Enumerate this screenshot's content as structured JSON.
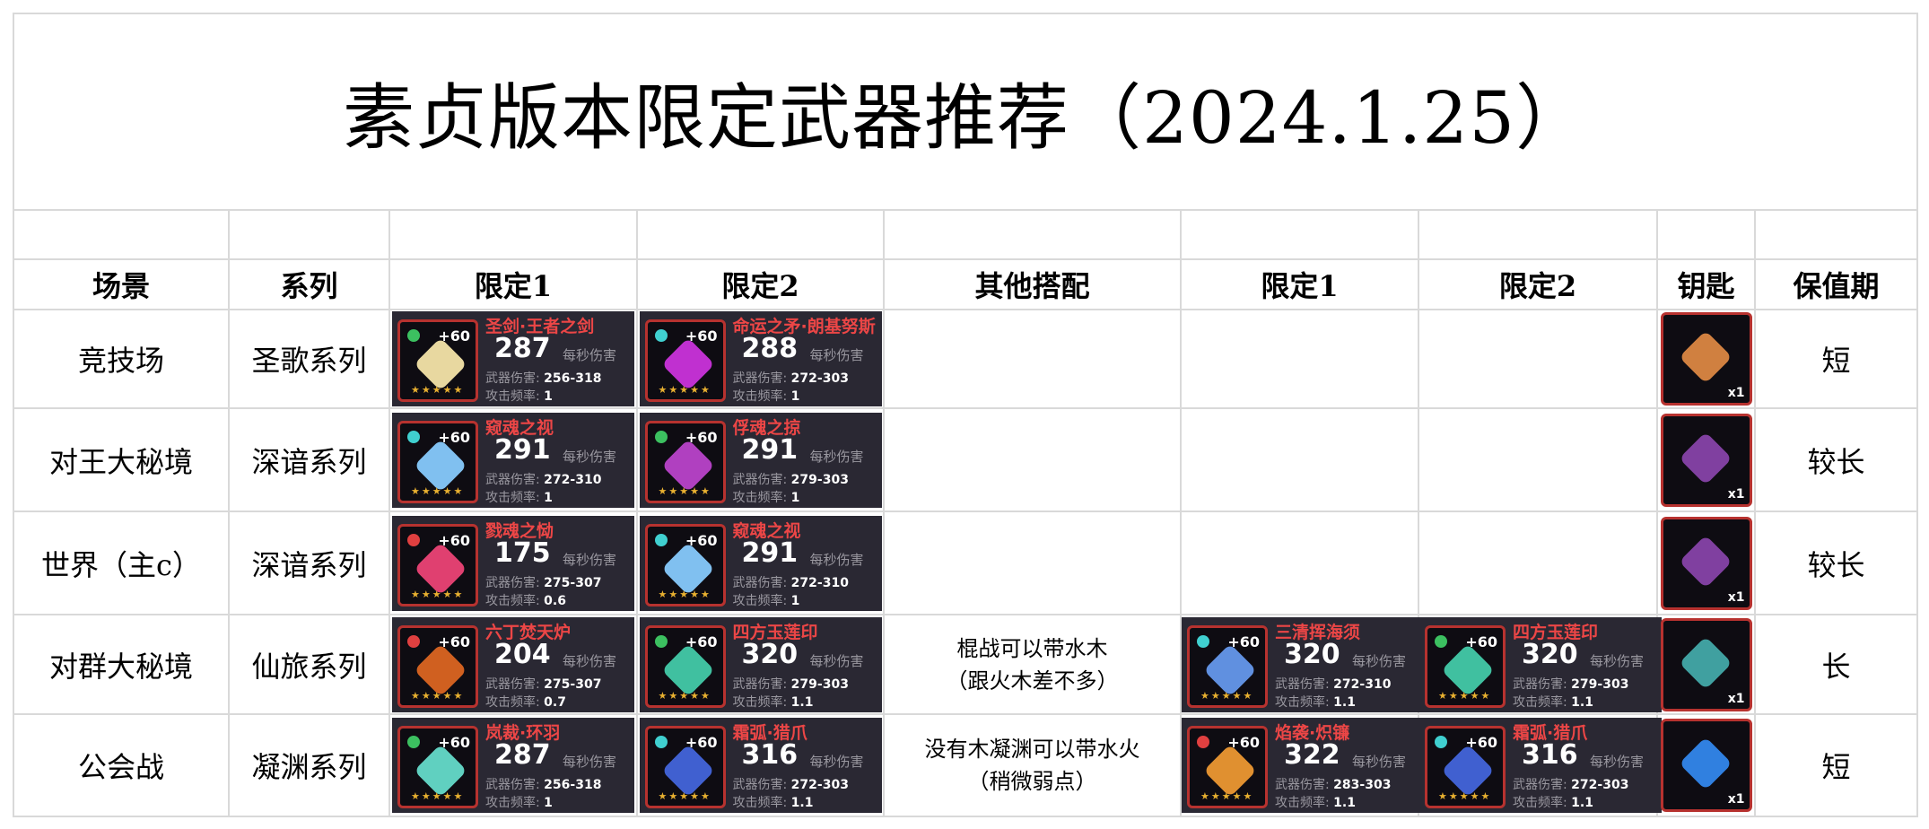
{
  "title": "素贞版本限定武器推荐（2024.1.25）",
  "headers": [
    "场景",
    "系列",
    "限定1",
    "限定2",
    "其他搭配",
    "限定1",
    "限定2",
    "钥匙",
    "保值期"
  ],
  "dps_label": "每秒伤害",
  "dmg_label": "武器伤害:",
  "rate_label": "攻击频率:",
  "plus": "+60",
  "stars": "★★★★★",
  "key_count": "x1",
  "colors": {
    "card_bg": "#2a2833",
    "name_red": "#ec4646",
    "frame_red": "#b7322f",
    "fire": "#e04040",
    "wood": "#3cc060",
    "water": "#40d0d0"
  },
  "rows": [
    {
      "scene": "竞技场",
      "series": "圣歌系列",
      "w1": {
        "name": "圣剑·王者之剑",
        "dps": "287",
        "dmg": "256-318",
        "rate": "1",
        "element": "wood",
        "art": "#e8d8a0"
      },
      "w2": {
        "name": "命运之矛·朗基努斯",
        "dps": "288",
        "dmg": "272-303",
        "rate": "1",
        "element": "water",
        "art": "#c030d0"
      },
      "note": "",
      "w3": null,
      "w4": null,
      "key_art": "#d08040",
      "period": "短"
    },
    {
      "scene": "对王大秘境",
      "series": "深谙系列",
      "w1": {
        "name": "窥魂之视",
        "dps": "291",
        "dmg": "272-310",
        "rate": "1",
        "element": "water",
        "art": "#80c0f0"
      },
      "w2": {
        "name": "俘魂之掠",
        "dps": "291",
        "dmg": "279-303",
        "rate": "1",
        "element": "wood",
        "art": "#b040c0"
      },
      "note": "",
      "w3": null,
      "w4": null,
      "key_art": "#8040a0",
      "period": "较长"
    },
    {
      "scene": "世界（主c）",
      "series": "深谙系列",
      "w1": {
        "name": "戮魂之恸",
        "dps": "175",
        "dmg": "275-307",
        "rate": "0.6",
        "element": "fire",
        "art": "#e04070"
      },
      "w2": {
        "name": "窥魂之视",
        "dps": "291",
        "dmg": "272-310",
        "rate": "1",
        "element": "water",
        "art": "#80c0f0"
      },
      "note": "",
      "w3": null,
      "w4": null,
      "key_art": "#8040a0",
      "period": "较长"
    },
    {
      "scene": "对群大秘境",
      "series": "仙旅系列",
      "w1": {
        "name": "六丁焚天炉",
        "dps": "204",
        "dmg": "275-307",
        "rate": "0.7",
        "element": "fire",
        "art": "#d06020"
      },
      "w2": {
        "name": "四方玉莲印",
        "dps": "320",
        "dmg": "279-303",
        "rate": "1.1",
        "element": "wood",
        "art": "#40c0a0"
      },
      "note": "棍战可以带水木\n（跟火木差不多）",
      "w3": {
        "name": "三清挥海须",
        "dps": "320",
        "dmg": "272-310",
        "rate": "1.1",
        "element": "water",
        "art": "#6090e0"
      },
      "w4": {
        "name": "四方玉莲印",
        "dps": "320",
        "dmg": "279-303",
        "rate": "1.1",
        "element": "wood",
        "art": "#40c0a0"
      },
      "key_art": "#40a0a0",
      "period": "长"
    },
    {
      "scene": "公会战",
      "series": "凝渊系列",
      "w1": {
        "name": "岚裁·环羽",
        "dps": "287",
        "dmg": "256-318",
        "rate": "1",
        "element": "wood",
        "art": "#60d0c0"
      },
      "w2": {
        "name": "霜弧·猎爪",
        "dps": "316",
        "dmg": "272-303",
        "rate": "1.1",
        "element": "water",
        "art": "#4060d0"
      },
      "note": "没有木凝渊可以带水火\n（稍微弱点）",
      "w3": {
        "name": "焰袭·炽镰",
        "dps": "322",
        "dmg": "283-303",
        "rate": "1.1",
        "element": "fire",
        "art": "#e09030"
      },
      "w4": {
        "name": "霜弧·猎爪",
        "dps": "316",
        "dmg": "272-303",
        "rate": "1.1",
        "element": "water",
        "art": "#4060d0"
      },
      "key_art": "#3080e0",
      "period": "短"
    }
  ]
}
